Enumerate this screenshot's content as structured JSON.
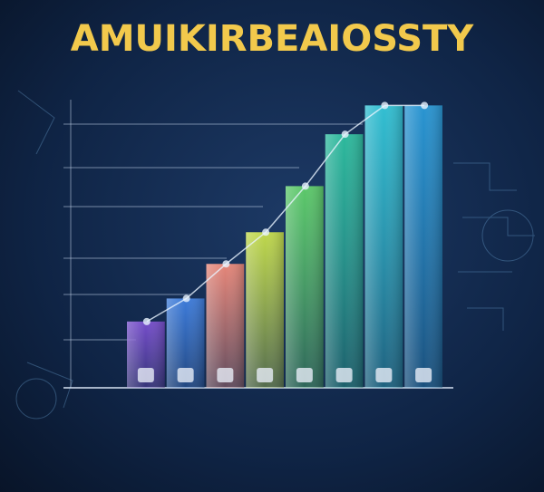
{
  "chart_data": {
    "type": "bar",
    "title": "AMUIKIRBEAIOSSTY",
    "categories": [
      null,
      null,
      null,
      null,
      null,
      null,
      null,
      null
    ],
    "values": [
      23,
      31,
      43,
      54,
      70,
      88,
      98,
      98
    ],
    "colors": [
      "#7a4fd0",
      "#3f7fe0",
      "#f08a7a",
      "#c8e04a",
      "#5fd06a",
      "#2ec0a0",
      "#33c6d8",
      "#2a9ad8"
    ],
    "ylim": [
      0,
      100
    ]
  }
}
